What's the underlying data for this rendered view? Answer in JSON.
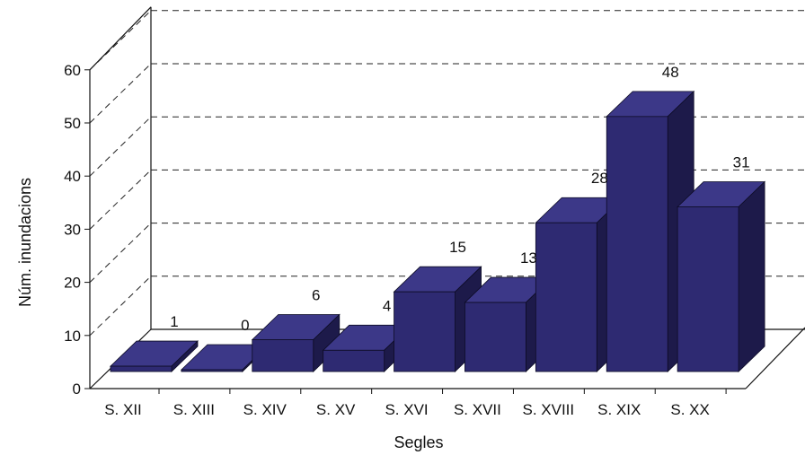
{
  "chart_data": {
    "type": "bar",
    "title": "",
    "xlabel": "Segles",
    "ylabel": "Núm. inundacions",
    "categories": [
      "S. XII",
      "S. XIII",
      "S. XIV",
      "S. XV",
      "S. XVI",
      "S. XVII",
      "S. XVIII",
      "S. XIX",
      "S. XX"
    ],
    "values": [
      1,
      0,
      6,
      4,
      15,
      13,
      28,
      48,
      31
    ],
    "ylim": [
      0,
      60
    ],
    "yticks": [
      "0",
      "10",
      "20",
      "30",
      "40",
      "50",
      "60"
    ],
    "grid": true,
    "style": "3d",
    "colors": {
      "bar_front": "#2e2a72",
      "bar_top": "#3c3888",
      "bar_side": "#1d1a4a",
      "grid": "#222222"
    }
  }
}
